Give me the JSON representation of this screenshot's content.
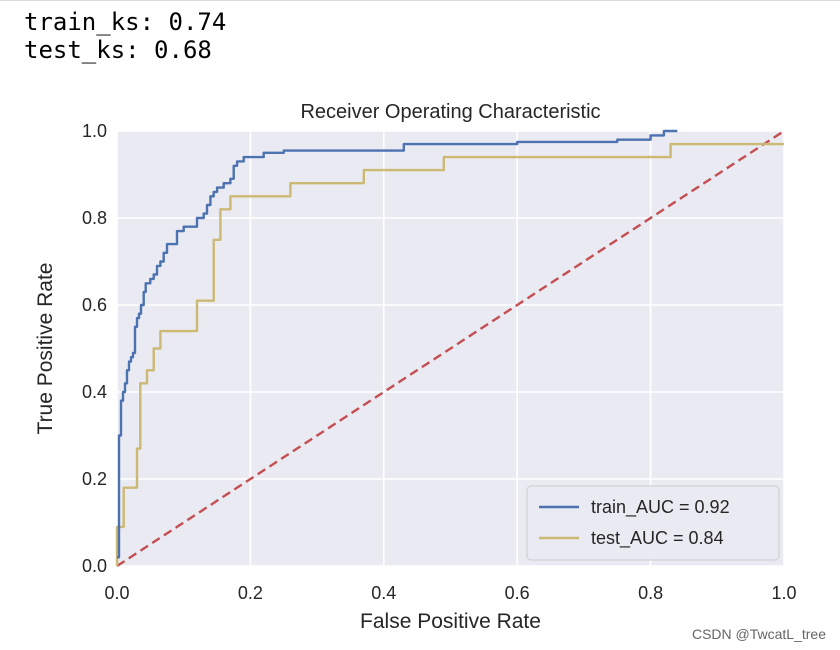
{
  "console": {
    "train_ks": "train_ks: 0.74",
    "test_ks": "test_ks: 0.68"
  },
  "watermark": "CSDN @TwcatL_tree",
  "chart_data": {
    "type": "line",
    "title": "Receiver Operating Characteristic",
    "xlabel": "False Positive Rate",
    "ylabel": "True Positive Rate",
    "xlim": [
      0,
      1
    ],
    "ylim": [
      0,
      1
    ],
    "xticks": [
      "0.0",
      "0.2",
      "0.4",
      "0.6",
      "0.8",
      "1.0"
    ],
    "yticks": [
      "0.0",
      "0.2",
      "0.4",
      "0.6",
      "0.8",
      "1.0"
    ],
    "grid": true,
    "background": "#eaeaf2",
    "legend_position": "lower-right",
    "series": [
      {
        "name": "train_AUC = 0.92",
        "color": "#4c72b0",
        "style": "solid",
        "x": [
          0.0,
          0.003,
          0.003,
          0.006,
          0.006,
          0.009,
          0.009,
          0.012,
          0.012,
          0.015,
          0.015,
          0.018,
          0.018,
          0.021,
          0.021,
          0.024,
          0.024,
          0.027,
          0.027,
          0.03,
          0.03,
          0.033,
          0.033,
          0.036,
          0.036,
          0.04,
          0.04,
          0.043,
          0.043,
          0.046,
          0.046,
          0.05,
          0.05,
          0.055,
          0.055,
          0.06,
          0.06,
          0.065,
          0.065,
          0.07,
          0.07,
          0.075,
          0.075,
          0.08,
          0.08,
          0.09,
          0.09,
          0.1,
          0.1,
          0.12,
          0.12,
          0.13,
          0.13,
          0.135,
          0.135,
          0.14,
          0.14,
          0.145,
          0.145,
          0.15,
          0.15,
          0.155,
          0.155,
          0.16,
          0.16,
          0.17,
          0.17,
          0.175,
          0.175,
          0.18,
          0.18,
          0.185,
          0.185,
          0.19,
          0.19,
          0.2,
          0.2,
          0.22,
          0.22,
          0.25,
          0.25,
          0.43,
          0.43,
          0.6,
          0.6,
          0.75,
          0.75,
          0.8,
          0.8,
          0.82,
          0.82,
          0.84
        ],
        "y": [
          0.02,
          0.02,
          0.3,
          0.3,
          0.38,
          0.38,
          0.4,
          0.4,
          0.42,
          0.42,
          0.45,
          0.45,
          0.47,
          0.47,
          0.48,
          0.48,
          0.49,
          0.49,
          0.55,
          0.55,
          0.57,
          0.57,
          0.58,
          0.58,
          0.6,
          0.6,
          0.63,
          0.63,
          0.65,
          0.65,
          0.65,
          0.65,
          0.66,
          0.66,
          0.67,
          0.67,
          0.69,
          0.69,
          0.7,
          0.7,
          0.72,
          0.72,
          0.74,
          0.74,
          0.74,
          0.74,
          0.77,
          0.77,
          0.78,
          0.78,
          0.8,
          0.8,
          0.81,
          0.81,
          0.83,
          0.83,
          0.85,
          0.85,
          0.86,
          0.86,
          0.87,
          0.87,
          0.87,
          0.87,
          0.88,
          0.88,
          0.89,
          0.89,
          0.92,
          0.92,
          0.93,
          0.93,
          0.93,
          0.93,
          0.94,
          0.94,
          0.94,
          0.94,
          0.95,
          0.95,
          0.955,
          0.955,
          0.97,
          0.97,
          0.975,
          0.975,
          0.98,
          0.98,
          0.99,
          0.99,
          1.0,
          1.0
        ]
      },
      {
        "name": "test_AUC = 0.84",
        "color": "#ccb974",
        "style": "solid",
        "x": [
          0.0,
          0.0,
          0.01,
          0.01,
          0.03,
          0.03,
          0.035,
          0.035,
          0.045,
          0.045,
          0.055,
          0.055,
          0.065,
          0.065,
          0.08,
          0.08,
          0.12,
          0.12,
          0.145,
          0.145,
          0.155,
          0.155,
          0.17,
          0.17,
          0.26,
          0.26,
          0.37,
          0.37,
          0.49,
          0.49,
          0.83,
          0.83,
          1.0
        ],
        "y": [
          0.0,
          0.09,
          0.09,
          0.18,
          0.18,
          0.27,
          0.27,
          0.42,
          0.42,
          0.45,
          0.45,
          0.5,
          0.5,
          0.54,
          0.54,
          0.54,
          0.54,
          0.61,
          0.61,
          0.75,
          0.75,
          0.82,
          0.82,
          0.85,
          0.85,
          0.88,
          0.88,
          0.91,
          0.91,
          0.94,
          0.94,
          0.97,
          0.97
        ]
      },
      {
        "name": "",
        "color": "#c44e52",
        "style": "dashed",
        "x": [
          0,
          1
        ],
        "y": [
          0,
          1
        ]
      }
    ]
  }
}
